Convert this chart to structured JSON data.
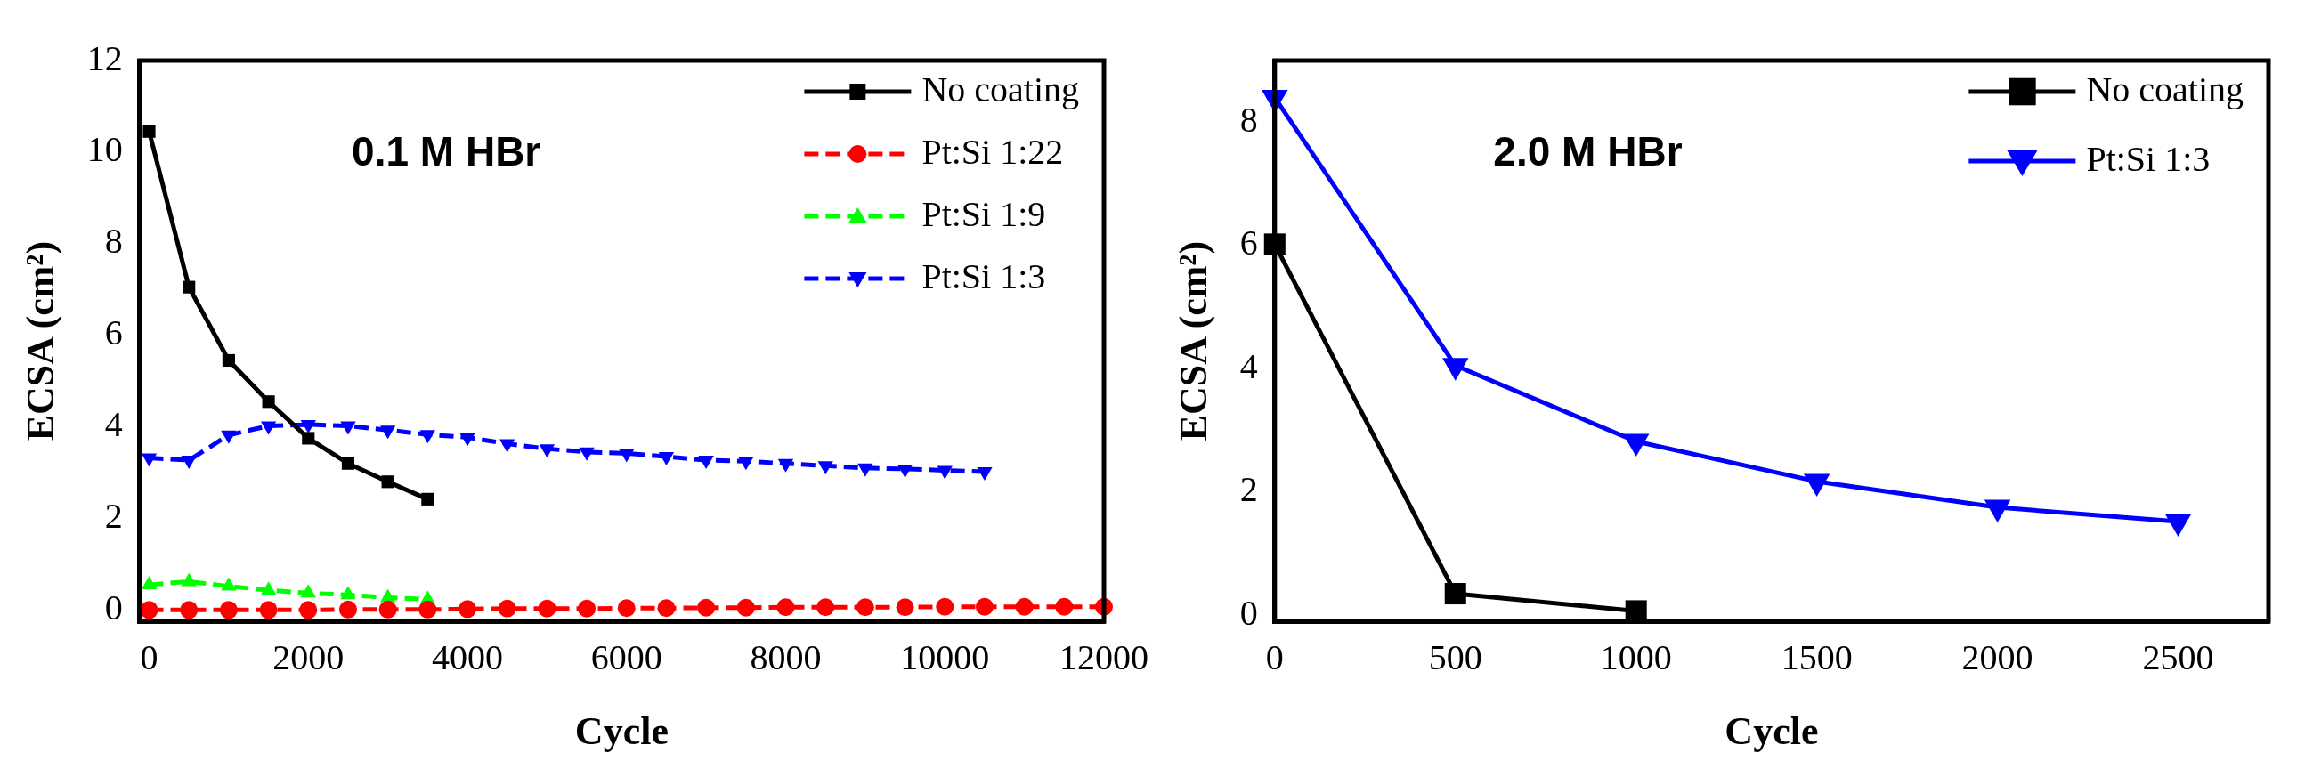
{
  "chart_data": [
    {
      "type": "line",
      "xlabel": "Cycle",
      "ylabel": "ECSA (cm²)",
      "annotations": [
        "0.1 M HBr"
      ],
      "xlim": [
        -120,
        12000
      ],
      "xticks": [
        0,
        2000,
        4000,
        6000,
        8000,
        10000,
        12000
      ],
      "ylim": [
        -0.25,
        12
      ],
      "yticks": [
        0,
        2,
        4,
        6,
        8,
        10,
        12
      ],
      "grid": false,
      "legend": "top right",
      "series": [
        {
          "name": "No coating",
          "color": "#000000",
          "marker": "square",
          "line_style": "solid",
          "x": [
            0,
            500,
            1000,
            1500,
            2000,
            2500,
            3000,
            3500
          ],
          "values": [
            10.45,
            7.05,
            5.45,
            4.55,
            3.75,
            3.2,
            2.8,
            2.42
          ]
        },
        {
          "name": "Pt:Si 1:22",
          "color": "#ff0000",
          "marker": "circle",
          "line_style": "dashed",
          "x": [
            0,
            500,
            1000,
            1500,
            2000,
            2500,
            3000,
            3500,
            4000,
            4500,
            5000,
            5500,
            6000,
            6500,
            7000,
            7500,
            8000,
            8500,
            9000,
            9500,
            10000,
            10500,
            11000,
            11500,
            12000
          ],
          "values": [
            0,
            0,
            0,
            0,
            0,
            0.01,
            0.01,
            0.01,
            0.02,
            0.03,
            0.03,
            0.03,
            0.04,
            0.04,
            0.05,
            0.05,
            0.06,
            0.06,
            0.06,
            0.06,
            0.07,
            0.07,
            0.07,
            0.07,
            0.07
          ]
        },
        {
          "name": "Pt:Si 1:9",
          "color": "#00ff00",
          "marker": "triangle",
          "line_style": "dashed",
          "x": [
            0,
            500,
            1000,
            1500,
            2000,
            2500,
            3000,
            3500
          ],
          "values": [
            0.55,
            0.62,
            0.52,
            0.43,
            0.37,
            0.33,
            0.27,
            0.23
          ]
        },
        {
          "name": "Pt:Si 1:3",
          "color": "#0000ff",
          "marker": "triangle-down",
          "line_style": "dashed",
          "x": [
            0,
            500,
            1000,
            1500,
            2000,
            2500,
            3000,
            3500,
            4000,
            4500,
            5000,
            5500,
            6000,
            6500,
            7000,
            7500,
            8000,
            8500,
            9000,
            9500,
            10000,
            10500
          ],
          "values": [
            3.32,
            3.27,
            3.82,
            4.02,
            4.05,
            4.02,
            3.93,
            3.83,
            3.77,
            3.63,
            3.52,
            3.45,
            3.42,
            3.35,
            3.27,
            3.25,
            3.2,
            3.15,
            3.1,
            3.08,
            3.05,
            3.02
          ]
        }
      ]
    },
    {
      "type": "line",
      "xlabel": "Cycle",
      "ylabel": "ECSA (cm²)",
      "annotations": [
        "2.0 M HBr"
      ],
      "xlim": [
        0,
        2750
      ],
      "xticks": [
        0,
        500,
        1000,
        1500,
        2000,
        2500
      ],
      "ylim": [
        -0.1,
        9
      ],
      "yticks": [
        0,
        2,
        4,
        6,
        8
      ],
      "grid": false,
      "legend": "top right",
      "series": [
        {
          "name": "No coating",
          "color": "#000000",
          "marker": "square",
          "line_style": "solid",
          "x": [
            0,
            500,
            1000
          ],
          "values": [
            6.02,
            0.35,
            0.07
          ]
        },
        {
          "name": "Pt:Si 1:3",
          "color": "#0000ff",
          "marker": "triangle-down",
          "line_style": "solid",
          "x": [
            0,
            500,
            1000,
            1500,
            2000,
            2500
          ],
          "values": [
            8.4,
            4.05,
            2.82,
            2.17,
            1.75,
            1.52
          ]
        }
      ]
    }
  ]
}
